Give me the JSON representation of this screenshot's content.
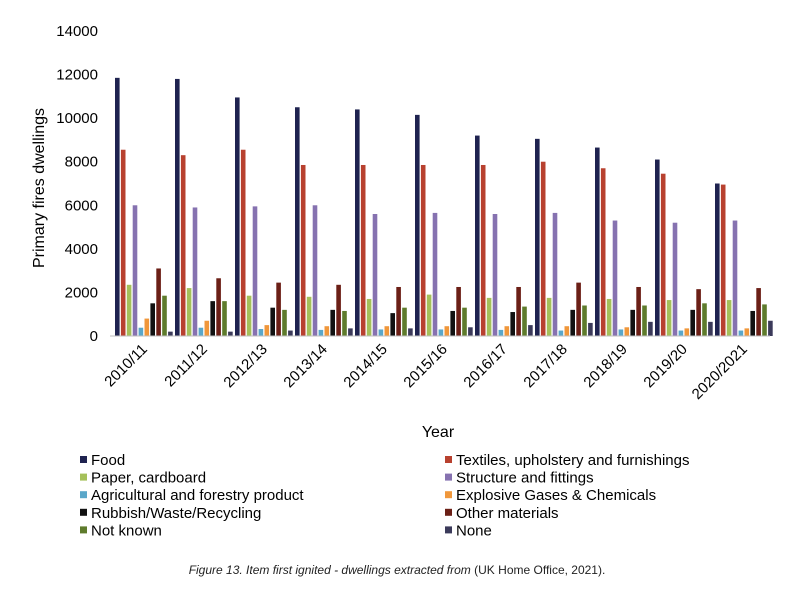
{
  "chart_data": {
    "type": "bar",
    "title": "",
    "xlabel": "Year",
    "ylabel": "Primary fires dwellings",
    "ylim": [
      0,
      14000
    ],
    "yticks": [
      0,
      2000,
      4000,
      6000,
      8000,
      10000,
      12000,
      14000
    ],
    "ytick_labels": [
      "0",
      "2000",
      "4000",
      "6000",
      "8000",
      "10000",
      "12000",
      "14000"
    ],
    "grid": false,
    "legend_position": "bottom",
    "categories": [
      "2010/11",
      "2011/12",
      "2012/13",
      "2013/14",
      "2014/15",
      "2015/16",
      "2016/17",
      "2017/18",
      "2018/19",
      "2019/20",
      "2020/2021"
    ],
    "series": [
      {
        "name": "Food",
        "color": "#1f2350",
        "values": [
          11850,
          11800,
          10950,
          10500,
          10400,
          10150,
          9200,
          9050,
          8650,
          8100,
          7000
        ]
      },
      {
        "name": "Textiles, upholstery and furnishings",
        "color": "#b8412f",
        "values": [
          8550,
          8300,
          8550,
          7850,
          7850,
          7850,
          7850,
          8000,
          7700,
          7450,
          6950
        ]
      },
      {
        "name": "Paper, cardboard",
        "color": "#a5c05a",
        "values": [
          2350,
          2200,
          1850,
          1800,
          1700,
          1900,
          1750,
          1750,
          1700,
          1650,
          1650
        ]
      },
      {
        "name": "Structure and fittings",
        "color": "#8672b0",
        "values": [
          6000,
          5900,
          5950,
          6000,
          5600,
          5650,
          5600,
          5650,
          5300,
          5200,
          5300
        ]
      },
      {
        "name": "Agricultural and forestry product",
        "color": "#5aa7c9",
        "values": [
          380,
          380,
          320,
          280,
          300,
          300,
          280,
          250,
          300,
          250,
          250
        ]
      },
      {
        "name": "Explosive Gases & Chemicals",
        "color": "#f0973b",
        "values": [
          800,
          700,
          500,
          450,
          450,
          450,
          450,
          450,
          400,
          350,
          350
        ]
      },
      {
        "name": "Rubbish/Waste/Recycling",
        "color": "#111111",
        "values": [
          1500,
          1600,
          1300,
          1200,
          1050,
          1150,
          1100,
          1200,
          1200,
          1200,
          1150
        ]
      },
      {
        "name": "Other materials",
        "color": "#6b1f16",
        "values": [
          3100,
          2650,
          2450,
          2350,
          2250,
          2250,
          2250,
          2450,
          2250,
          2150,
          2200
        ]
      },
      {
        "name": "Not known",
        "color": "#5e7b2c",
        "values": [
          1850,
          1600,
          1200,
          1150,
          1300,
          1300,
          1350,
          1400,
          1400,
          1500,
          1450
        ]
      },
      {
        "name": "None",
        "color": "#3b3a5a",
        "values": [
          200,
          200,
          250,
          350,
          350,
          400,
          500,
          600,
          650,
          650,
          700
        ]
      }
    ]
  },
  "caption": {
    "italic_text": "Figure 13. Item first ignited - dwellings extracted from",
    "plain_text": " (UK Home Office, 2021)."
  }
}
